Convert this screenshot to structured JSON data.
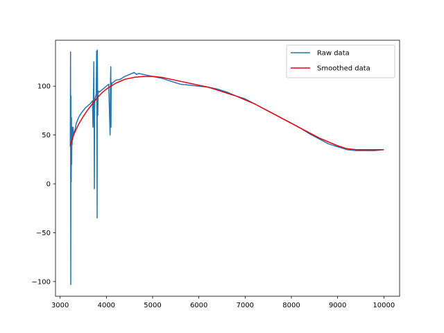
{
  "chart_data": {
    "type": "line",
    "title": "",
    "xlabel": "",
    "ylabel": "",
    "xlim": [
      2900,
      10340
    ],
    "ylim": [
      -115,
      147
    ],
    "grid": false,
    "legend_position": "top-right",
    "x_ticks": [
      3000,
      4000,
      5000,
      6000,
      7000,
      8000,
      9000,
      10000
    ],
    "x_tick_labels": [
      "3000",
      "4000",
      "5000",
      "6000",
      "7000",
      "8000",
      "9000",
      "10000"
    ],
    "y_ticks": [
      -100,
      -50,
      0,
      50,
      100
    ],
    "y_tick_labels": [
      "−100",
      "−50",
      "0",
      "50",
      "100"
    ],
    "series": [
      {
        "name": "Raw data",
        "color": "#1f77b4",
        "x": [
          3220,
          3225,
          3230,
          3235,
          3240,
          3245,
          3250,
          3255,
          3260,
          3265,
          3270,
          3280,
          3290,
          3300,
          3320,
          3350,
          3400,
          3450,
          3500,
          3550,
          3600,
          3650,
          3700,
          3710,
          3720,
          3730,
          3740,
          3745,
          3750,
          3760,
          3780,
          3790,
          3800,
          3805,
          3810,
          3815,
          3820,
          3830,
          3850,
          3900,
          3950,
          4000,
          4050,
          4080,
          4090,
          4095,
          4100,
          4105,
          4110,
          4120,
          4150,
          4200,
          4300,
          4400,
          4500,
          4600,
          4650,
          4700,
          4800,
          4900,
          5000,
          5200,
          5400,
          5600,
          5800,
          6000,
          6200,
          6400,
          6600,
          6800,
          7000,
          7200,
          7400,
          7600,
          7800,
          8000,
          8200,
          8400,
          8600,
          8800,
          9000,
          9200,
          9400,
          9600,
          9800,
          10000
        ],
        "y": [
          38,
          135,
          -103,
          90,
          2,
          68,
          20,
          58,
          40,
          55,
          45,
          58,
          50,
          52,
          55,
          62,
          68,
          72,
          75,
          78,
          80,
          82,
          85,
          58,
          92,
          125,
          -5,
          75,
          85,
          88,
          92,
          136,
          -35,
          137,
          90,
          70,
          92,
          95,
          94,
          96,
          98,
          100,
          102,
          50,
          108,
          120,
          58,
          104,
          100,
          103,
          104,
          106,
          107,
          110,
          112,
          114,
          112,
          113,
          112,
          111,
          110,
          108,
          105,
          102,
          101,
          100,
          99,
          97,
          94,
          90,
          87,
          82,
          77,
          72,
          67,
          62,
          57,
          51,
          46,
          41,
          38,
          35,
          34,
          34,
          34,
          35
        ]
      },
      {
        "name": "Smoothed data",
        "color": "#e8000b",
        "x": [
          3220,
          3250,
          3300,
          3400,
          3500,
          3600,
          3700,
          3800,
          3900,
          4000,
          4200,
          4400,
          4600,
          4800,
          5000,
          5200,
          5400,
          5600,
          5800,
          6000,
          6200,
          6400,
          6600,
          6800,
          7000,
          7200,
          7400,
          7600,
          7800,
          8000,
          8200,
          8400,
          8600,
          8800,
          9000,
          9200,
          9400,
          9600,
          9800,
          10000
        ],
        "y": [
          39,
          44,
          51,
          61,
          69,
          76,
          82,
          88,
          93,
          97,
          103,
          107,
          109,
          110,
          110,
          109,
          107,
          105,
          103,
          101,
          99,
          96,
          93,
          90,
          86,
          82,
          77,
          72,
          67,
          62,
          57,
          52,
          47,
          43,
          39,
          36,
          35,
          35,
          35,
          35
        ]
      }
    ]
  }
}
